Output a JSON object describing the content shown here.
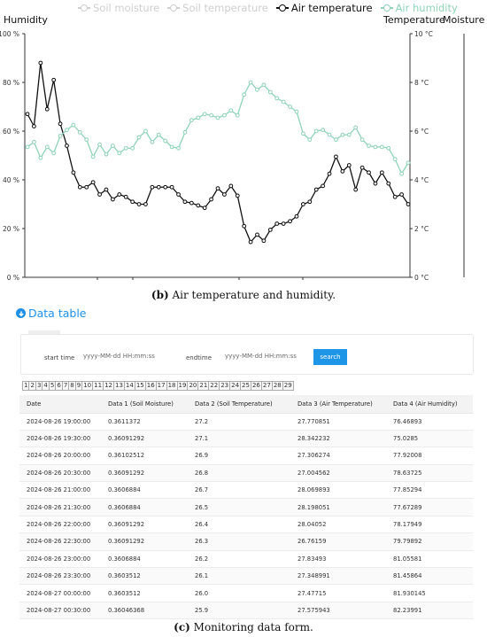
{
  "chart": {
    "caption_bold": "(b)",
    "caption_text": " Air temperature and humidity.",
    "left_axis_title": "Humidity",
    "right_axis_title_1": "Temperature",
    "right_axis_title_2": "Moisture",
    "legend": [
      {
        "label": "Soil moisture",
        "color": "#cfcfcf"
      },
      {
        "label": "Soil temperature",
        "color": "#cfcfcf"
      },
      {
        "label": "Air temperature",
        "color": "#111111"
      },
      {
        "label": "Air humidity",
        "color": "#8fd3b8"
      }
    ]
  },
  "chart_data": {
    "type": "line",
    "left_axis": {
      "ticks": [
        "100 %",
        "80 %",
        "60 %",
        "40 %",
        "20 %",
        "0 %"
      ],
      "ylim": [
        0,
        100
      ]
    },
    "right_axis": {
      "ticks": [
        "10 °C",
        "8 °C",
        "6 °C",
        "4 °C",
        "2 °C",
        "0 °C"
      ],
      "ylim": [
        0,
        10
      ]
    },
    "grid": false,
    "legend_position": "top",
    "series": [
      {
        "name": "Air temperature",
        "color": "#111111",
        "axis": "right",
        "values": [
          6.7,
          6.2,
          8.8,
          6.9,
          8.1,
          6.3,
          5.4,
          4.3,
          3.7,
          3.7,
          3.9,
          3.4,
          3.6,
          3.2,
          3.4,
          3.3,
          3.1,
          3.0,
          3.0,
          3.7,
          3.7,
          3.7,
          3.7,
          3.4,
          3.1,
          3.05,
          2.95,
          2.85,
          3.2,
          3.65,
          3.4,
          3.75,
          3.35,
          2.1,
          1.45,
          1.75,
          1.5,
          1.95,
          2.2,
          2.2,
          2.3,
          2.5,
          3.0,
          3.1,
          3.6,
          3.75,
          4.25,
          4.95,
          4.35,
          4.6,
          3.6,
          4.5,
          4.3,
          3.85,
          4.3,
          3.85,
          3.3,
          3.4,
          3.0
        ]
      },
      {
        "name": "Air humidity",
        "color": "#8fd3b8",
        "axis": "left",
        "values": [
          53.5,
          55.5,
          49,
          53.5,
          51,
          58,
          60.5,
          62.5,
          59.5,
          56.5,
          49.5,
          54.5,
          50.5,
          54,
          51,
          53,
          53,
          57.5,
          60,
          55.5,
          58.5,
          56,
          53.5,
          53,
          59.5,
          64.5,
          65.5,
          67,
          66.5,
          65.5,
          66.5,
          68.5,
          66.5,
          75,
          80,
          77,
          79,
          76,
          73.5,
          72,
          70,
          68,
          59,
          56.5,
          60,
          60.5,
          58.5,
          56.5,
          58.5,
          58.5,
          61.5,
          56.5,
          54,
          53.5,
          53.5,
          53,
          48.5,
          42.5,
          47
        ]
      }
    ]
  },
  "data_section": {
    "toggle_label": "Data table",
    "start_label": "start time",
    "start_placeholder": "yyyy-MM-dd HH:mm:ss",
    "end_label": "endtime",
    "end_placeholder": "yyyy-MM-dd HH:mm:ss",
    "search_label": "search",
    "pages": [
      "1",
      "2",
      "3",
      "4",
      "5",
      "6",
      "7",
      "8",
      "9",
      "10",
      "11",
      "12",
      "13",
      "14",
      "15",
      "16",
      "17",
      "18",
      "19",
      "20",
      "21",
      "22",
      "23",
      "24",
      "25",
      "26",
      "27",
      "28",
      "29"
    ],
    "columns": [
      "Date",
      "Data 1 (Soil Moisture)",
      "Data 2 (Soil Temperature)",
      "Data 3 (Air Temperature)",
      "Data 4 (Air Humidity)"
    ],
    "rows": [
      [
        "2024-08-26 19:00:00",
        "0.3611372",
        "27.2",
        "27.770851",
        "76.46893"
      ],
      [
        "2024-08-26 19:30:00",
        "0.36091292",
        "27.1",
        "28.342232",
        "75.0285"
      ],
      [
        "2024-08-26 20:00:00",
        "0.36102512",
        "26.9",
        "27.306274",
        "77.92008"
      ],
      [
        "2024-08-26 20:30:00",
        "0.36091292",
        "26.8",
        "27.004562",
        "78.63725"
      ],
      [
        "2024-08-26 21:00:00",
        "0.3606884",
        "26.7",
        "28.069893",
        "77.85294"
      ],
      [
        "2024-08-26 21:30:00",
        "0.3606884",
        "26.5",
        "28.198051",
        "77.67289"
      ],
      [
        "2024-08-26 22:00:00",
        "0.36091292",
        "26.4",
        "28.04052",
        "78.17949"
      ],
      [
        "2024-08-26 22:30:00",
        "0.36091292",
        "26.3",
        "26.76159",
        "79.79892"
      ],
      [
        "2024-08-26 23:00:00",
        "0.3606884",
        "26.2",
        "27.83493",
        "81.05581"
      ],
      [
        "2024-08-26 23:30:00",
        "0.3603512",
        "26.1",
        "27.348991",
        "81.45864"
      ],
      [
        "2024-08-27 00:00:00",
        "0.3603512",
        "26.0",
        "27.47715",
        "81.930145"
      ],
      [
        "2024-08-27 00:30:00",
        "0.36046368",
        "25.9",
        "27.575943",
        "82.23991"
      ]
    ],
    "caption_bold": "(c)",
    "caption_text": " Monitoring data form."
  }
}
